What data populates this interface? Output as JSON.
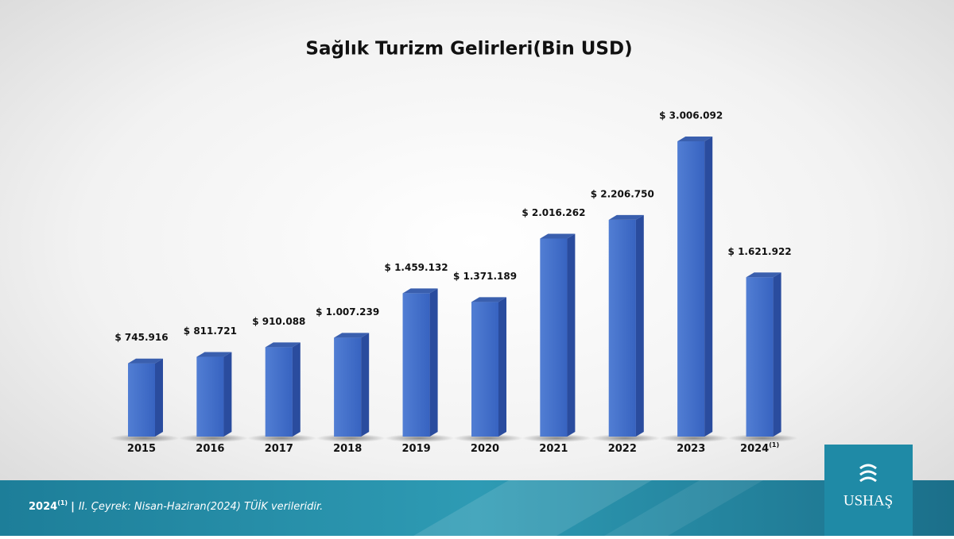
{
  "chart_data": {
    "type": "bar",
    "title": "Sağlık Turizm Gelirleri(Bin USD)",
    "categories": [
      "2015",
      "2016",
      "2017",
      "2018",
      "2019",
      "2020",
      "2021",
      "2022",
      "2023",
      "2024"
    ],
    "values": [
      745916,
      811721,
      910088,
      1007239,
      1459132,
      1371189,
      2016262,
      2206750,
      3006092,
      1621922
    ],
    "value_labels": [
      "$ 745.916",
      "$ 811.721",
      "$ 910.088",
      "$ 1.007.239",
      "$ 1.459.132",
      "$ 1.371.189",
      "$ 2.016.262",
      "$ 2.206.750",
      "$ 3.006.092",
      "$ 1.621.922"
    ],
    "color": "#3d6bc9",
    "footnote_marker": "(1)"
  },
  "footer": {
    "year": "2024",
    "marker": "(1)",
    "separator": "|",
    "note": "II. Çeyrek: Nisan-Haziran(2024) TÜİK verileridir."
  },
  "logo": {
    "text": "USHAŞ"
  }
}
